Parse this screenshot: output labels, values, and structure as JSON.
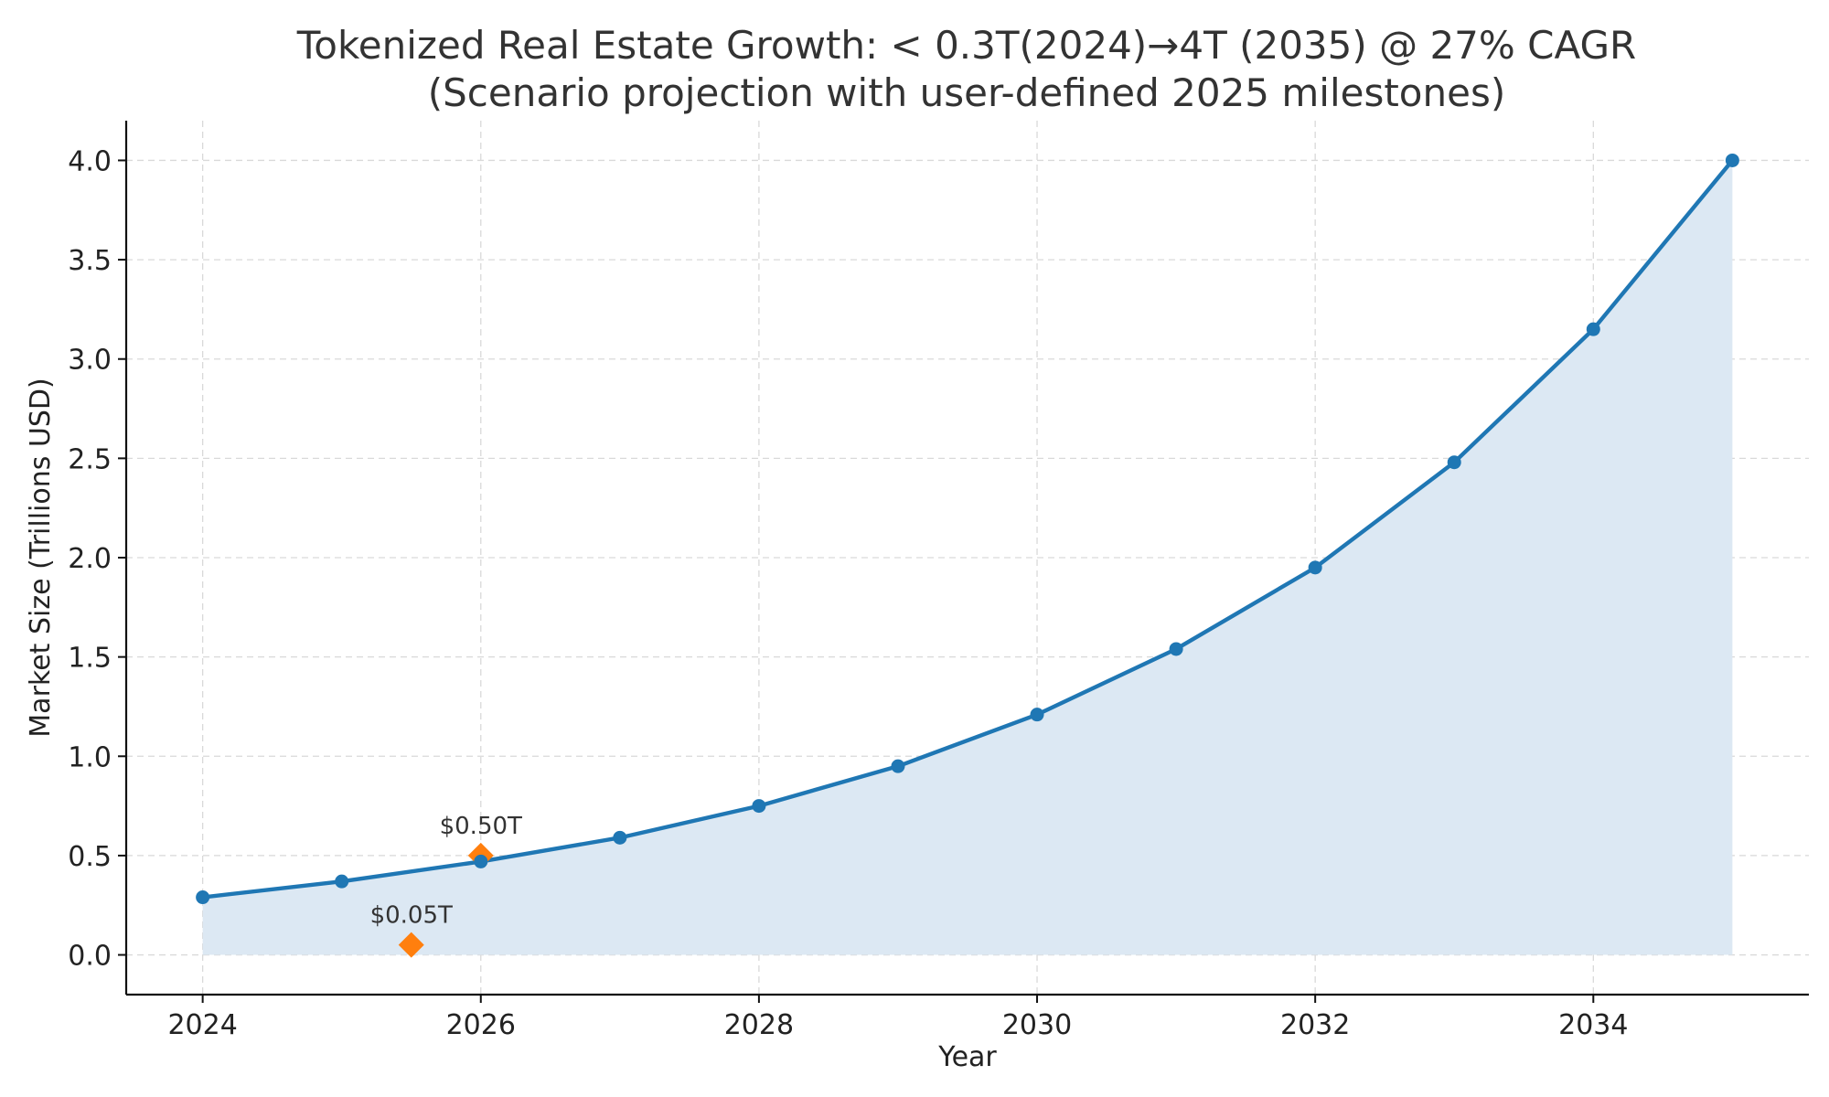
{
  "chart_data": {
    "type": "line",
    "title_line1": "Tokenized Real Estate Growth: < 0.3T(2024)→4T (2035) @ 27% CAGR",
    "title_line2": "(Scenario projection with user-defined 2025 milestones)",
    "xlabel": "Year",
    "ylabel": "Market Size (Trillions USD)",
    "xlim": [
      2023.45,
      2035.55
    ],
    "ylim": [
      -0.2,
      4.2
    ],
    "xticks": [
      2024,
      2026,
      2028,
      2030,
      2032,
      2034
    ],
    "yticks": [
      0.0,
      0.5,
      1.0,
      1.5,
      2.0,
      2.5,
      3.0,
      3.5,
      4.0
    ],
    "grid": true,
    "series": [
      {
        "x": [
          2024,
          2025,
          2026,
          2027,
          2028,
          2029,
          2030,
          2031,
          2032,
          2033,
          2034,
          2035
        ],
        "values": [
          0.29,
          0.37,
          0.47,
          0.59,
          0.75,
          0.95,
          1.21,
          1.54,
          1.95,
          2.48,
          3.15,
          4.0
        ],
        "color": "#1f77b4",
        "fill": "#dce8f3"
      }
    ],
    "milestones": [
      {
        "x": 2025.5,
        "y": 0.05,
        "label": "$0.05T"
      },
      {
        "x": 2026.0,
        "y": 0.5,
        "label": "$0.50T"
      }
    ],
    "milestone_color": "#ff7f0e"
  }
}
